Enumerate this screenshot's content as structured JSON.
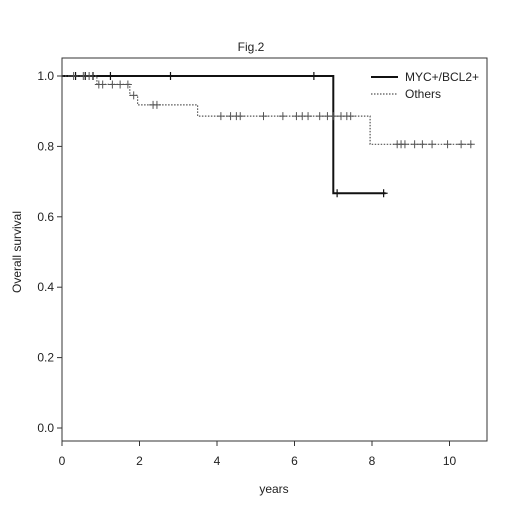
{
  "chart_data": {
    "type": "line",
    "subtype": "kaplan-meier",
    "title": "Fig.2",
    "xlabel": "years",
    "ylabel": "Overall survival",
    "xlim": [
      0,
      11
    ],
    "ylim": [
      0,
      1
    ],
    "xticks": [
      0,
      2,
      4,
      6,
      8,
      10
    ],
    "yticks": [
      0.0,
      0.2,
      0.4,
      0.6,
      0.8,
      1.0
    ],
    "ytick_labels": [
      "0.0",
      "0.2",
      "0.4",
      "0.6",
      "0.8",
      "1.0"
    ],
    "grid": false,
    "legend_position": "top-right",
    "series": [
      {
        "name": "MYC+/BCL2+",
        "line_style": "solid",
        "color": "#111111",
        "steps": [
          [
            0,
            1.0
          ],
          [
            7.0,
            1.0
          ],
          [
            7.0,
            0.667
          ],
          [
            8.35,
            0.667
          ]
        ],
        "censor_marks": [
          [
            0.35,
            1.0
          ],
          [
            0.6,
            1.0
          ],
          [
            0.8,
            1.0
          ],
          [
            1.25,
            1.0
          ],
          [
            2.8,
            1.0
          ],
          [
            6.5,
            1.0
          ],
          [
            7.1,
            0.667
          ],
          [
            8.3,
            0.667
          ]
        ]
      },
      {
        "name": "Others",
        "line_style": "dotted",
        "color": "#555555",
        "steps": [
          [
            0,
            1.0
          ],
          [
            0.9,
            1.0
          ],
          [
            0.9,
            0.976
          ],
          [
            1.75,
            0.976
          ],
          [
            1.75,
            0.945
          ],
          [
            1.95,
            0.945
          ],
          [
            1.95,
            0.918
          ],
          [
            3.5,
            0.918
          ],
          [
            3.5,
            0.886
          ],
          [
            7.95,
            0.886
          ],
          [
            7.95,
            0.806
          ],
          [
            10.6,
            0.806
          ]
        ],
        "censor_marks": [
          [
            0.3,
            1.0
          ],
          [
            0.55,
            1.0
          ],
          [
            0.7,
            1.0
          ],
          [
            0.95,
            0.976
          ],
          [
            1.05,
            0.976
          ],
          [
            1.3,
            0.976
          ],
          [
            1.5,
            0.976
          ],
          [
            1.7,
            0.976
          ],
          [
            1.85,
            0.945
          ],
          [
            2.35,
            0.918
          ],
          [
            2.45,
            0.918
          ],
          [
            4.1,
            0.886
          ],
          [
            4.35,
            0.886
          ],
          [
            4.5,
            0.886
          ],
          [
            4.6,
            0.886
          ],
          [
            5.2,
            0.886
          ],
          [
            5.7,
            0.886
          ],
          [
            6.05,
            0.886
          ],
          [
            6.2,
            0.886
          ],
          [
            6.35,
            0.886
          ],
          [
            6.65,
            0.886
          ],
          [
            6.85,
            0.886
          ],
          [
            7.0,
            0.886
          ],
          [
            7.2,
            0.886
          ],
          [
            7.35,
            0.886
          ],
          [
            7.45,
            0.886
          ],
          [
            8.65,
            0.806
          ],
          [
            8.75,
            0.806
          ],
          [
            8.85,
            0.806
          ],
          [
            9.1,
            0.806
          ],
          [
            9.3,
            0.806
          ],
          [
            9.55,
            0.806
          ],
          [
            9.95,
            0.806
          ],
          [
            10.3,
            0.806
          ],
          [
            10.55,
            0.806
          ]
        ]
      }
    ]
  }
}
